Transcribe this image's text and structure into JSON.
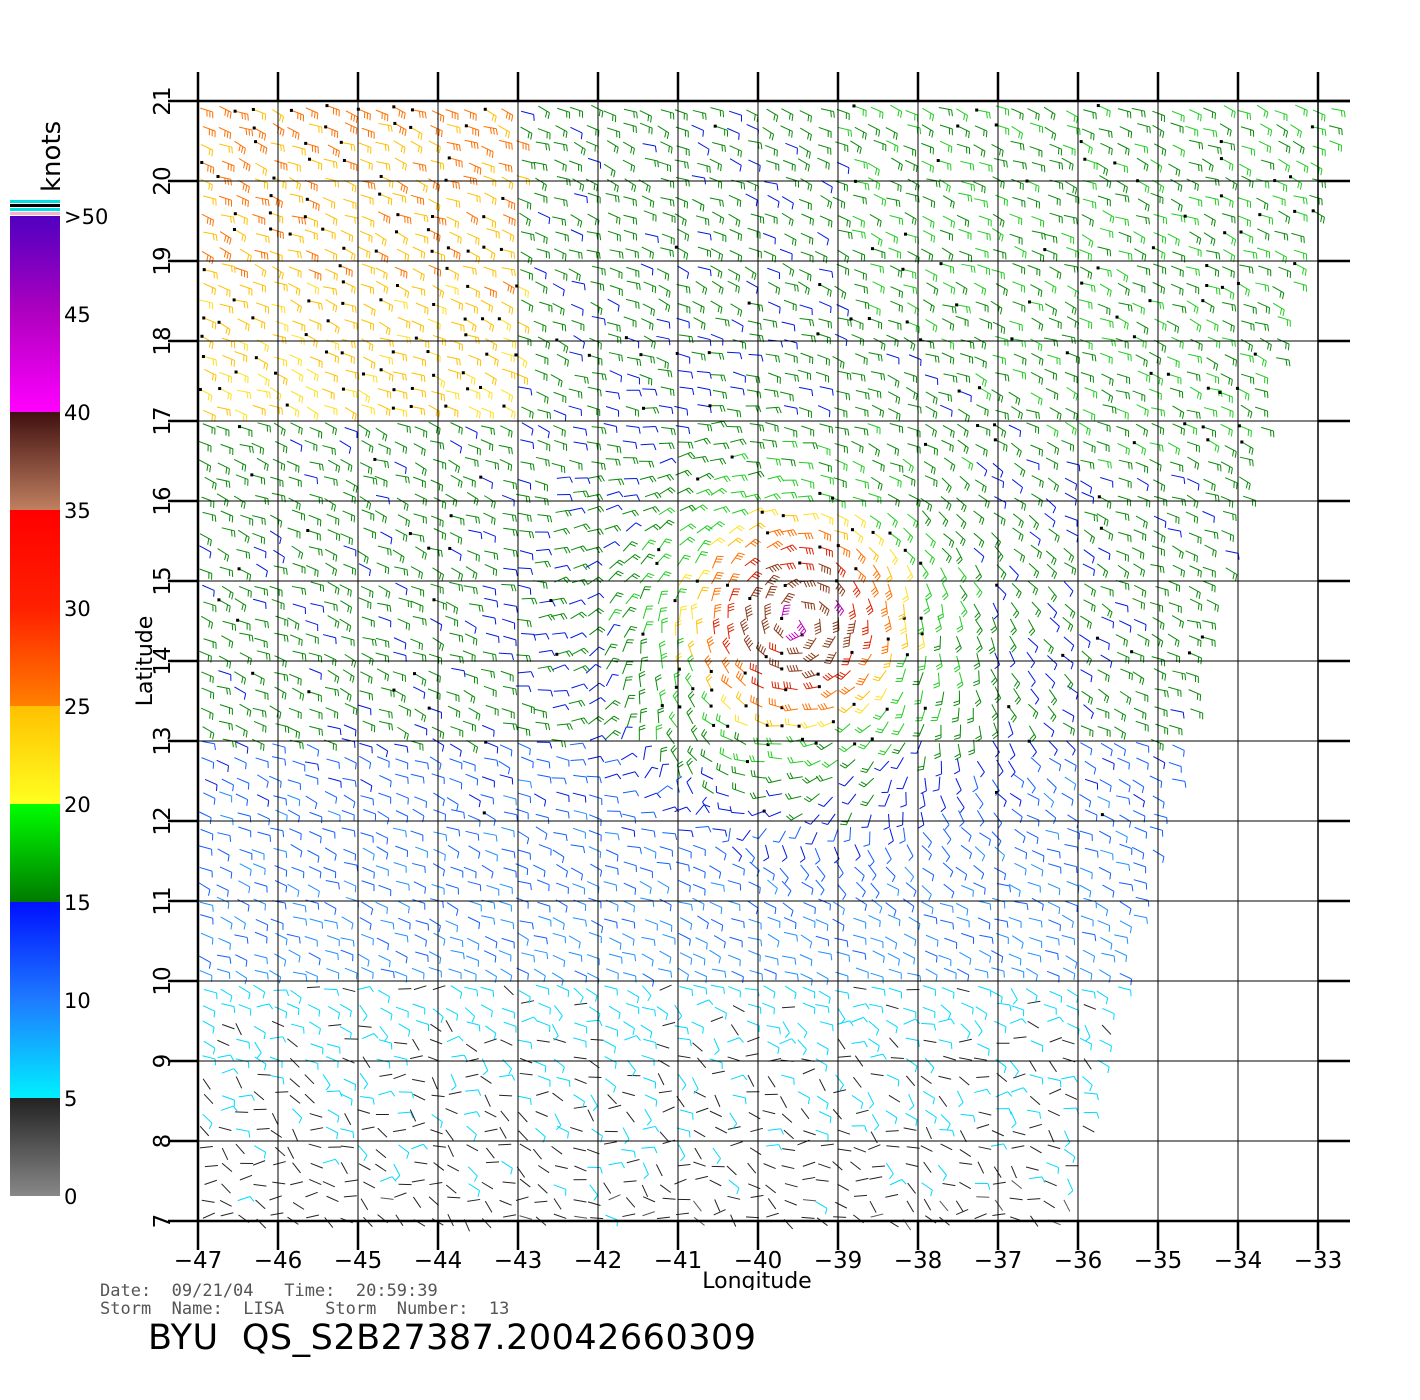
{
  "chart_data": {
    "type": "wind-barb-map",
    "xlabel": "Longitude",
    "ylabel": "Latitude",
    "xlim": [
      -47,
      -33
    ],
    "ylim": [
      7,
      21
    ],
    "x_ticks": [
      "−47",
      "−46",
      "−45",
      "−44",
      "−43",
      "−42",
      "−41",
      "−40",
      "−39",
      "−38",
      "−37",
      "−36",
      "−35",
      "−34",
      "−33"
    ],
    "y_ticks": [
      "7",
      "8",
      "9",
      "10",
      "11",
      "12",
      "13",
      "14",
      "15",
      "16",
      "17",
      "18",
      "19",
      "20",
      "21"
    ],
    "grid": true,
    "storm_center": [
      -39.5,
      14.5
    ],
    "colorbar": {
      "title": "knots",
      "position": "left",
      "labels": [
        "0",
        "5",
        "10",
        "15",
        "20",
        "25",
        "30",
        "35",
        "40",
        "45",
        ">50"
      ],
      "bins": [
        {
          "min": 0,
          "max": 5,
          "colors": [
            "#888888",
            "#222222"
          ]
        },
        {
          "min": 5,
          "max": 10,
          "colors": [
            "#00f0ff",
            "#1e7bff"
          ]
        },
        {
          "min": 10,
          "max": 15,
          "colors": [
            "#1e7bff",
            "#0010ff"
          ]
        },
        {
          "min": 15,
          "max": 20,
          "colors": [
            "#007a00",
            "#00ff00"
          ]
        },
        {
          "min": 20,
          "max": 25,
          "colors": [
            "#ffff20",
            "#ffc000"
          ]
        },
        {
          "min": 25,
          "max": 30,
          "colors": [
            "#ff8000",
            "#ff2000"
          ]
        },
        {
          "min": 30,
          "max": 35,
          "colors": [
            "#ff2000",
            "#ff0000"
          ]
        },
        {
          "min": 35,
          "max": 40,
          "colors": [
            "#c08060",
            "#401010"
          ]
        },
        {
          "min": 40,
          "max": 45,
          "colors": [
            "#ff00ff",
            "#b000c0"
          ]
        },
        {
          "min": 45,
          "max": 50,
          "colors": [
            "#b000c0",
            "#5000c0"
          ]
        }
      ]
    },
    "swath": {
      "west": -47,
      "east_top": -33,
      "east_bottom": -36.5,
      "south": 7,
      "north": 21
    }
  },
  "metadata": {
    "date_line": "Date:  09/21/04   Time:  20:59:39",
    "storm_line": "Storm  Name:  LISA    Storm  Number:  13",
    "product_id": "BYU  QS_S2B27387.20042660309"
  }
}
